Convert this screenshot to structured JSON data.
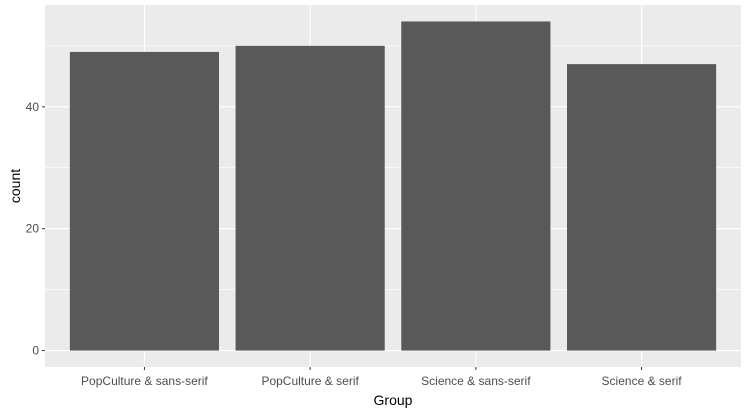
{
  "chart_data": {
    "type": "bar",
    "categories": [
      "PopCulture & sans-serif",
      "PopCulture & serif",
      "Science & sans-serif",
      "Science & serif"
    ],
    "values": [
      49,
      50,
      54,
      47
    ],
    "xlabel": "Group",
    "ylabel": "count",
    "ylim": [
      -2.7,
      56.7
    ],
    "yticks": [
      0,
      20,
      40
    ],
    "ytick_labels": [
      "0",
      "20",
      "40"
    ],
    "grid": true,
    "colors": {
      "panel_background": "#ebebeb",
      "grid_major": "#ffffff",
      "bar_fill": "#595959",
      "tick_mark": "#333333",
      "tick_text": "#4d4d4d",
      "title_text": "#000000"
    }
  }
}
